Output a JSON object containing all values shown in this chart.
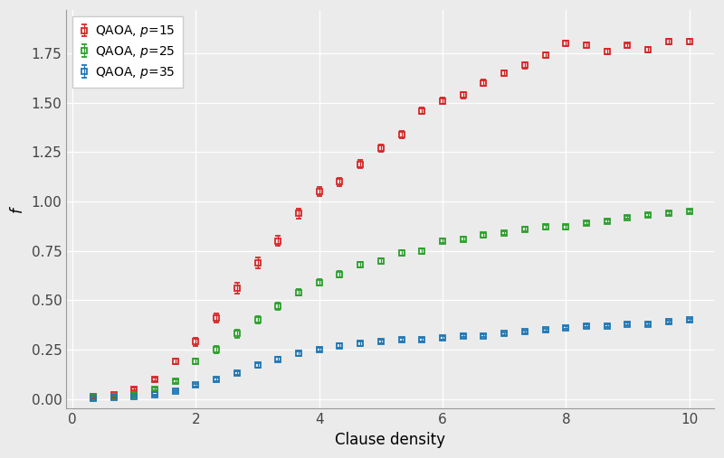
{
  "xlabel": "Clause density",
  "ylabel": "f",
  "legend_labels": [
    "QAOA, $p$=15",
    "QAOA, $p$=25",
    "QAOA, $p$=35"
  ],
  "colors": [
    "#d62728",
    "#2ca02c",
    "#1f77b4"
  ],
  "marker": "s",
  "markersize": 5,
  "background_color": "#ebebeb",
  "grid_color": "#ffffff",
  "x": [
    0.333,
    0.667,
    1.0,
    1.333,
    1.667,
    2.0,
    2.333,
    2.667,
    3.0,
    3.333,
    3.667,
    4.0,
    4.333,
    4.667,
    5.0,
    5.333,
    5.667,
    6.0,
    6.333,
    6.667,
    7.0,
    7.333,
    7.667,
    8.0,
    8.333,
    8.667,
    9.0,
    9.333,
    9.667,
    10.0
  ],
  "p15": [
    0.01,
    0.02,
    0.05,
    0.1,
    0.19,
    0.29,
    0.41,
    0.56,
    0.69,
    0.8,
    0.94,
    1.05,
    1.1,
    1.19,
    1.27,
    1.34,
    1.46,
    1.51,
    1.54,
    1.6,
    1.65,
    1.69,
    1.74,
    1.8,
    1.79,
    1.76,
    1.79,
    1.77,
    1.81,
    1.81
  ],
  "p25": [
    0.005,
    0.01,
    0.02,
    0.05,
    0.09,
    0.19,
    0.25,
    0.33,
    0.4,
    0.47,
    0.54,
    0.59,
    0.63,
    0.68,
    0.7,
    0.74,
    0.75,
    0.8,
    0.81,
    0.83,
    0.84,
    0.86,
    0.87,
    0.87,
    0.89,
    0.9,
    0.92,
    0.93,
    0.94,
    0.95
  ],
  "p35": [
    0.002,
    0.005,
    0.01,
    0.02,
    0.04,
    0.07,
    0.1,
    0.13,
    0.17,
    0.2,
    0.23,
    0.25,
    0.27,
    0.28,
    0.29,
    0.3,
    0.3,
    0.31,
    0.32,
    0.32,
    0.33,
    0.34,
    0.35,
    0.36,
    0.37,
    0.37,
    0.38,
    0.38,
    0.39,
    0.4
  ],
  "p15_err": [
    0.002,
    0.003,
    0.006,
    0.01,
    0.015,
    0.02,
    0.025,
    0.027,
    0.027,
    0.026,
    0.025,
    0.023,
    0.021,
    0.02,
    0.019,
    0.018,
    0.017,
    0.017,
    0.016,
    0.016,
    0.015,
    0.015,
    0.014,
    0.014,
    0.014,
    0.014,
    0.013,
    0.013,
    0.013,
    0.013
  ],
  "p25_err": [
    0.001,
    0.002,
    0.003,
    0.006,
    0.009,
    0.015,
    0.018,
    0.019,
    0.019,
    0.019,
    0.018,
    0.017,
    0.016,
    0.015,
    0.014,
    0.013,
    0.013,
    0.012,
    0.012,
    0.011,
    0.011,
    0.01,
    0.01,
    0.01,
    0.009,
    0.009,
    0.009,
    0.009,
    0.009,
    0.008
  ],
  "p35_err": [
    0.001,
    0.001,
    0.002,
    0.003,
    0.005,
    0.007,
    0.009,
    0.01,
    0.011,
    0.011,
    0.011,
    0.011,
    0.01,
    0.01,
    0.009,
    0.009,
    0.009,
    0.008,
    0.008,
    0.008,
    0.008,
    0.008,
    0.007,
    0.007,
    0.007,
    0.007,
    0.007,
    0.007,
    0.007,
    0.007
  ],
  "xlim": [
    -0.1,
    10.4
  ],
  "ylim": [
    -0.05,
    1.97
  ],
  "yticks": [
    0.0,
    0.25,
    0.5,
    0.75,
    1.0,
    1.25,
    1.5,
    1.75
  ],
  "xticks": [
    0,
    2,
    4,
    6,
    8,
    10
  ]
}
